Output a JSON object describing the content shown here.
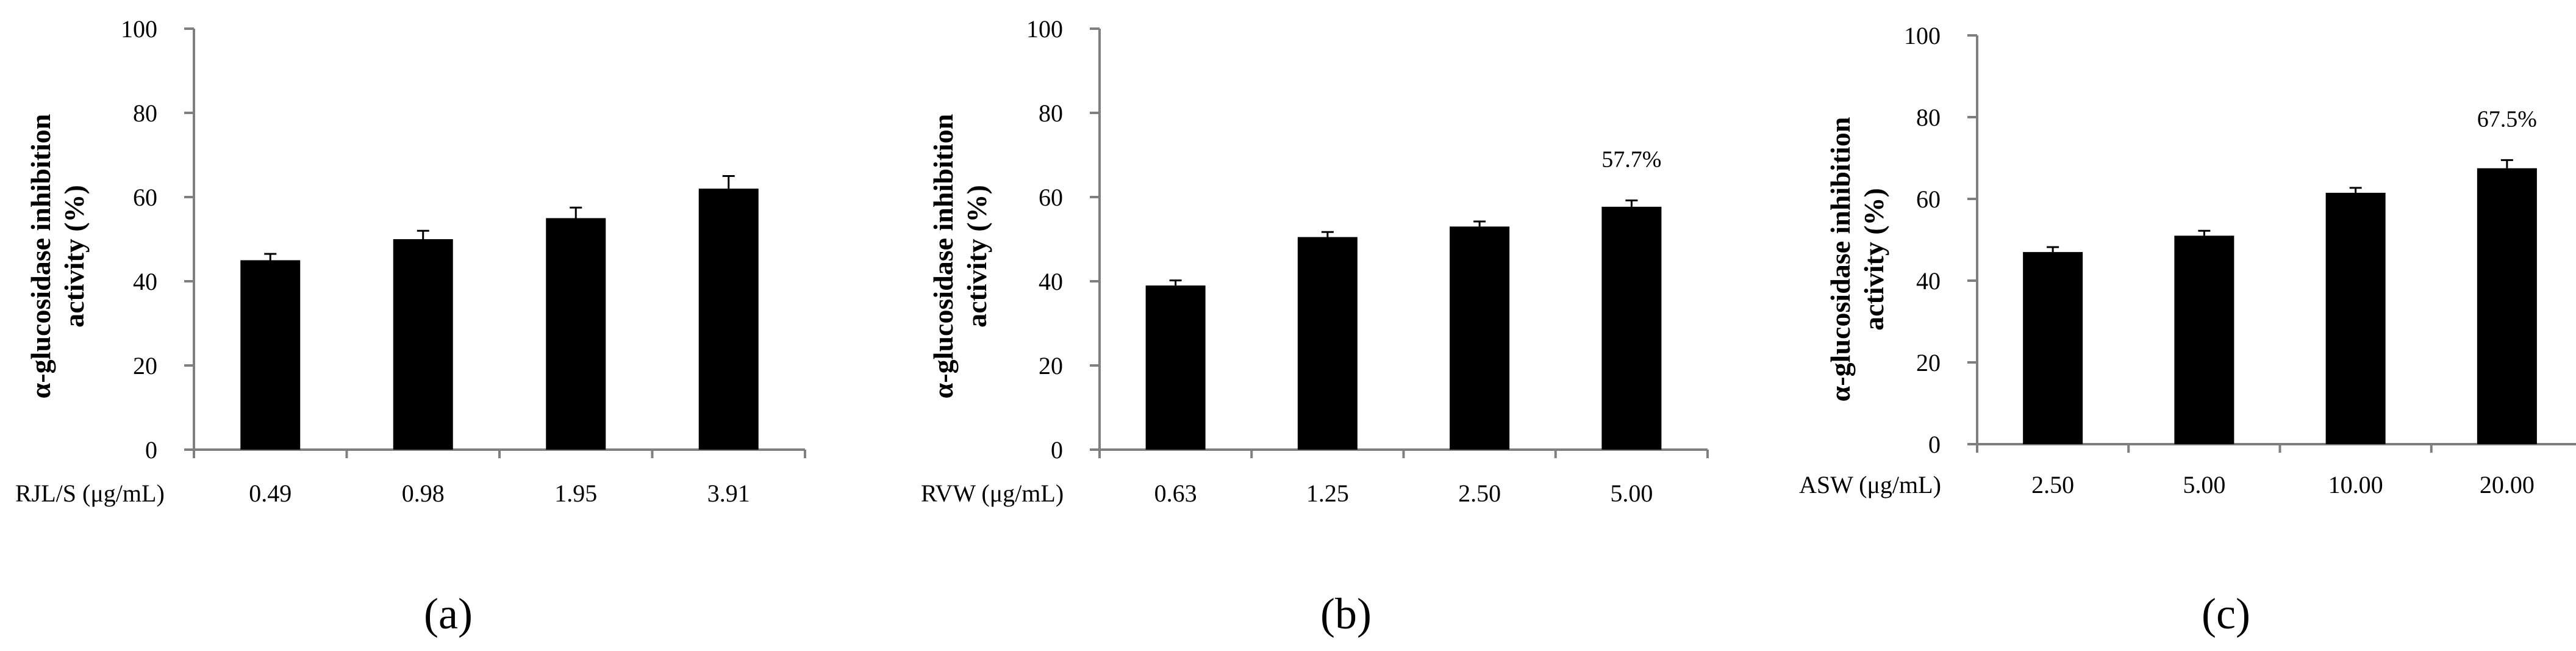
{
  "figure": {
    "ylabel_line1": "α-glucosidase inhibition",
    "ylabel_line2": "activity (%)"
  },
  "chart_data": [
    {
      "type": "bar",
      "panel": "a",
      "panel_label": "(a)",
      "xlabel": "RJL/S (μg/mL)",
      "ylabel": "α-glucosidase inhibition activity (%)",
      "categories": [
        "0.49",
        "0.98",
        "1.95",
        "3.91"
      ],
      "values": [
        45,
        50,
        55,
        62
      ],
      "errors": [
        1.5,
        2,
        2.5,
        3
      ],
      "annotations": [
        "",
        "",
        "",
        ""
      ],
      "ylim": [
        0,
        100
      ],
      "yticks": [
        "0",
        "20",
        "40",
        "60",
        "80",
        "100"
      ],
      "color": "#000000"
    },
    {
      "type": "bar",
      "panel": "b",
      "panel_label": "(b)",
      "xlabel": "RVW (μg/mL)",
      "ylabel": "α-glucosidase inhibition activity (%)",
      "categories": [
        "0.63",
        "1.25",
        "2.50",
        "5.00"
      ],
      "values": [
        39,
        50.5,
        53,
        57.7
      ],
      "errors": [
        1.2,
        1.2,
        1.2,
        1.5
      ],
      "annotations": [
        "",
        "",
        "",
        "57.7%"
      ],
      "ylim": [
        0,
        100
      ],
      "yticks": [
        "0",
        "20",
        "40",
        "60",
        "80",
        "100"
      ],
      "color": "#000000"
    },
    {
      "type": "bar",
      "panel": "c",
      "panel_label": "(c)",
      "xlabel": "ASW (μg/mL)",
      "ylabel": "α-glucosidase inhibition activity (%)",
      "categories": [
        "2.50",
        "5.00",
        "10.00",
        "20.00"
      ],
      "values": [
        47,
        51,
        61.5,
        67.5
      ],
      "errors": [
        1.2,
        1.2,
        1.2,
        2
      ],
      "annotations": [
        "",
        "",
        "",
        "67.5%"
      ],
      "ylim": [
        0,
        100
      ],
      "yticks": [
        "0",
        "20",
        "40",
        "60",
        "80",
        "100"
      ],
      "color": "#000000"
    }
  ]
}
